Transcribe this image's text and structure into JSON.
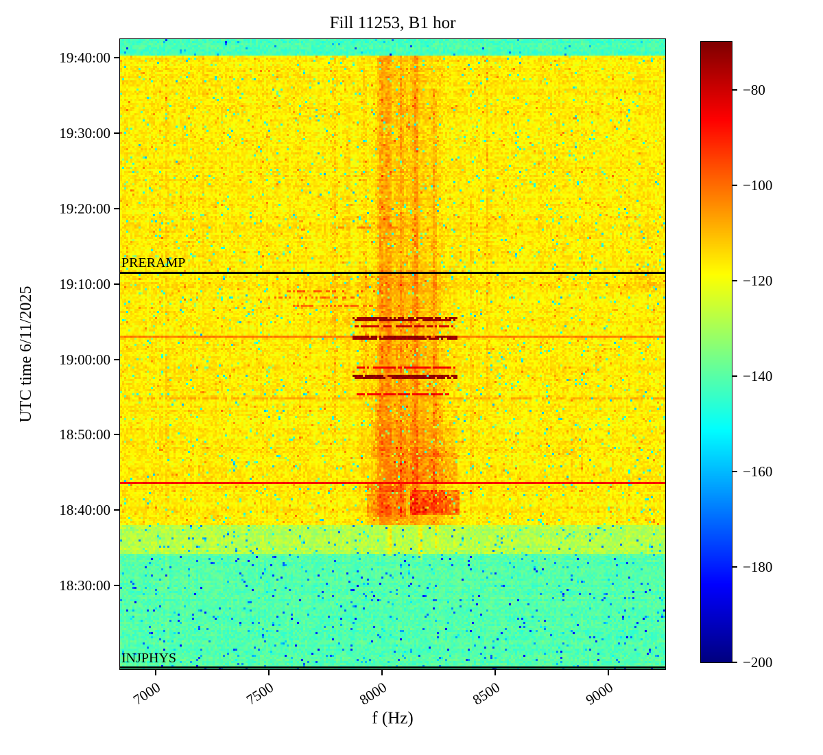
{
  "chart_data": {
    "type": "heatmap",
    "title": "Fill 11253, B1 hor",
    "xlabel": "f (Hz)",
    "ylabel": "UTC time 6/11/2025",
    "x_unit": "Hz",
    "x_range": [
      6842,
      9251
    ],
    "x_ticks": [
      7000,
      7500,
      8000,
      8500,
      9000
    ],
    "y_unit": "minutes after 18:00 UTC",
    "y_range": [
      18.9,
      102.5
    ],
    "y_ticks": [
      {
        "label": "19:40:00",
        "t": 100
      },
      {
        "label": "19:30:00",
        "t": 90
      },
      {
        "label": "19:20:00",
        "t": 80
      },
      {
        "label": "19:10:00",
        "t": 70
      },
      {
        "label": "19:00:00",
        "t": 60
      },
      {
        "label": "18:50:00",
        "t": 50
      },
      {
        "label": "18:40:00",
        "t": 40
      },
      {
        "label": "18:30:00",
        "t": 30
      }
    ],
    "colorbar": {
      "colormap": "jet",
      "vmin": -200,
      "vmax": -70,
      "ticks": [
        -80,
        -100,
        -120,
        -140,
        -160,
        -180,
        -200
      ]
    },
    "annotations": [
      {
        "text": "PRERAMP",
        "t": 71.5,
        "line": true,
        "line_width": 3
      },
      {
        "text": "INJPHYS",
        "t": 19.1,
        "line": true,
        "line_width": 3
      }
    ],
    "noise_seed": 20250611,
    "grid": {
      "cols": 265,
      "rows": 306
    },
    "time_bands": [
      {
        "t0": 100.25,
        "t1": 102.6,
        "base": -142.5,
        "noise": 4.0,
        "cool_p": 0.02
      },
      {
        "t0": 38.0,
        "t1": 100.25,
        "base": -116.5,
        "noise": 4.3,
        "cool_p": 0.03,
        "warm_p": 0.02
      },
      {
        "t0": 34.2,
        "t1": 38.0,
        "base": -128.0,
        "noise": 4.5,
        "cool_p": 0.04
      },
      {
        "t0": 18.0,
        "t1": 34.2,
        "base": -140.5,
        "noise": 3.8,
        "cool_p": 0.035
      }
    ],
    "v_bands": [
      {
        "f0": 7940,
        "f1": 8290,
        "t0": 38.0,
        "t1": 100.25,
        "dv": 4.5,
        "soft": 120
      },
      {
        "f0": 7860,
        "f1": 8350,
        "t0": 38.0,
        "t1": 72.0,
        "dv": 3.0,
        "soft": 100
      },
      {
        "f0": 7600,
        "f1": 7960,
        "t0": 62.0,
        "t1": 71.0,
        "dv": 2.0,
        "soft": 150
      },
      {
        "f0": 9050,
        "f1": 9251,
        "t0": 69.0,
        "t1": 72.0,
        "dv": 3.0,
        "soft": 80
      }
    ],
    "v_lines": [
      {
        "f": 8000,
        "w": 20,
        "dv": 9.0,
        "t0": 38.0,
        "t1": 100.25
      },
      {
        "f": 8030,
        "w": 12,
        "dv": 7.0,
        "t0": 38.0,
        "t1": 100.25
      },
      {
        "f": 8085,
        "w": 10,
        "dv": 6.0,
        "t0": 38.0,
        "t1": 100.25
      },
      {
        "f": 8150,
        "w": 14,
        "dv": 8.0,
        "t0": 38.0,
        "t1": 100.25
      },
      {
        "f": 8230,
        "w": 10,
        "dv": 7.0,
        "t0": 38.0,
        "t1": 96.0
      },
      {
        "f": 7925,
        "w": 10,
        "dv": 5.0,
        "t0": 55.0,
        "t1": 100.25
      },
      {
        "f": 7790,
        "w": 10,
        "dv": 4.5,
        "t0": 50.0,
        "t1": 100.25
      },
      {
        "f": 7850,
        "w": 8,
        "dv": 3.0,
        "t0": 55.0,
        "t1": 92.0
      },
      {
        "f": 7050,
        "w": 9,
        "dv": 3.5,
        "t0": 18.9,
        "t1": 100.25
      },
      {
        "f": 7210,
        "w": 8,
        "dv": 2.0,
        "t0": 45.0,
        "t1": 100.25
      },
      {
        "f": 8395,
        "w": 8,
        "dv": 3.5,
        "t0": 40.0,
        "t1": 82.0
      },
      {
        "f": 8465,
        "w": 8,
        "dv": 3.5,
        "t0": 55.0,
        "t1": 100.25
      },
      {
        "f": 8840,
        "w": 7,
        "dv": 4.5,
        "t0": 42.0,
        "t1": 52.0
      },
      {
        "f": 8035,
        "w": 9,
        "dv": 14.0,
        "t0": 34.0,
        "t1": 38.0
      },
      {
        "f": 8170,
        "w": 8,
        "dv": 15.0,
        "t0": 33.5,
        "t1": 38.0
      },
      {
        "f": 8240,
        "w": 7,
        "dv": 13.0,
        "t0": 35.0,
        "t1": 38.0
      }
    ],
    "blobs": [
      {
        "f0": 8120,
        "f1": 8340,
        "t0": 39.5,
        "t1": 42.8,
        "dv": 13,
        "noise": 5
      },
      {
        "f0": 7930,
        "f1": 8110,
        "t0": 39.2,
        "t1": 43.6,
        "dv": 7,
        "noise": 4
      },
      {
        "f0": 8040,
        "f1": 8330,
        "t0": 43.6,
        "t1": 47.5,
        "dv": 5,
        "noise": 4
      },
      {
        "f0": 7950,
        "f1": 8320,
        "t0": 47.0,
        "t1": 52.0,
        "dv": 3,
        "noise": 3
      }
    ],
    "h_lines": [
      {
        "t": 63.1,
        "v": -102,
        "rows": 1,
        "gap": 0
      },
      {
        "t": 43.6,
        "v": -86,
        "rows": 1,
        "gap": 0
      },
      {
        "t": 54.9,
        "v": -108,
        "rows": 1,
        "gap": 0.35
      }
    ],
    "h_bars": [
      {
        "t": 65.4,
        "f0": 7872,
        "f1": 8320,
        "v": -73,
        "rows": 2,
        "gap": 0.12
      },
      {
        "t": 64.4,
        "f0": 7885,
        "f1": 8300,
        "v": -79,
        "rows": 1,
        "gap": 0.22
      },
      {
        "t": 62.9,
        "f0": 7872,
        "f1": 8320,
        "v": -73,
        "rows": 2,
        "gap": 0.1
      },
      {
        "t": 59.0,
        "f0": 7890,
        "f1": 8310,
        "v": -85,
        "rows": 1,
        "gap": 0.12
      },
      {
        "t": 57.7,
        "f0": 7872,
        "f1": 8320,
        "v": -72,
        "rows": 2,
        "gap": 0.08
      },
      {
        "t": 55.4,
        "f0": 7890,
        "f1": 8290,
        "v": -85,
        "rows": 1,
        "gap": 0.15
      }
    ],
    "h_dashes": [
      {
        "t": 69.0,
        "f0": 7580,
        "f1": 7980,
        "v": -97,
        "rows": 1,
        "gap": 0.5
      },
      {
        "t": 68.1,
        "f0": 7520,
        "f1": 7900,
        "v": -99,
        "rows": 1,
        "gap": 0.55
      },
      {
        "t": 67.1,
        "f0": 7600,
        "f1": 8010,
        "v": -100,
        "rows": 1,
        "gap": 0.5
      },
      {
        "t": 77.6,
        "f0": 7810,
        "f1": 8060,
        "v": -102,
        "rows": 1,
        "gap": 0.45
      }
    ],
    "frame_color": "#000000",
    "background_color": "#ffffff"
  }
}
